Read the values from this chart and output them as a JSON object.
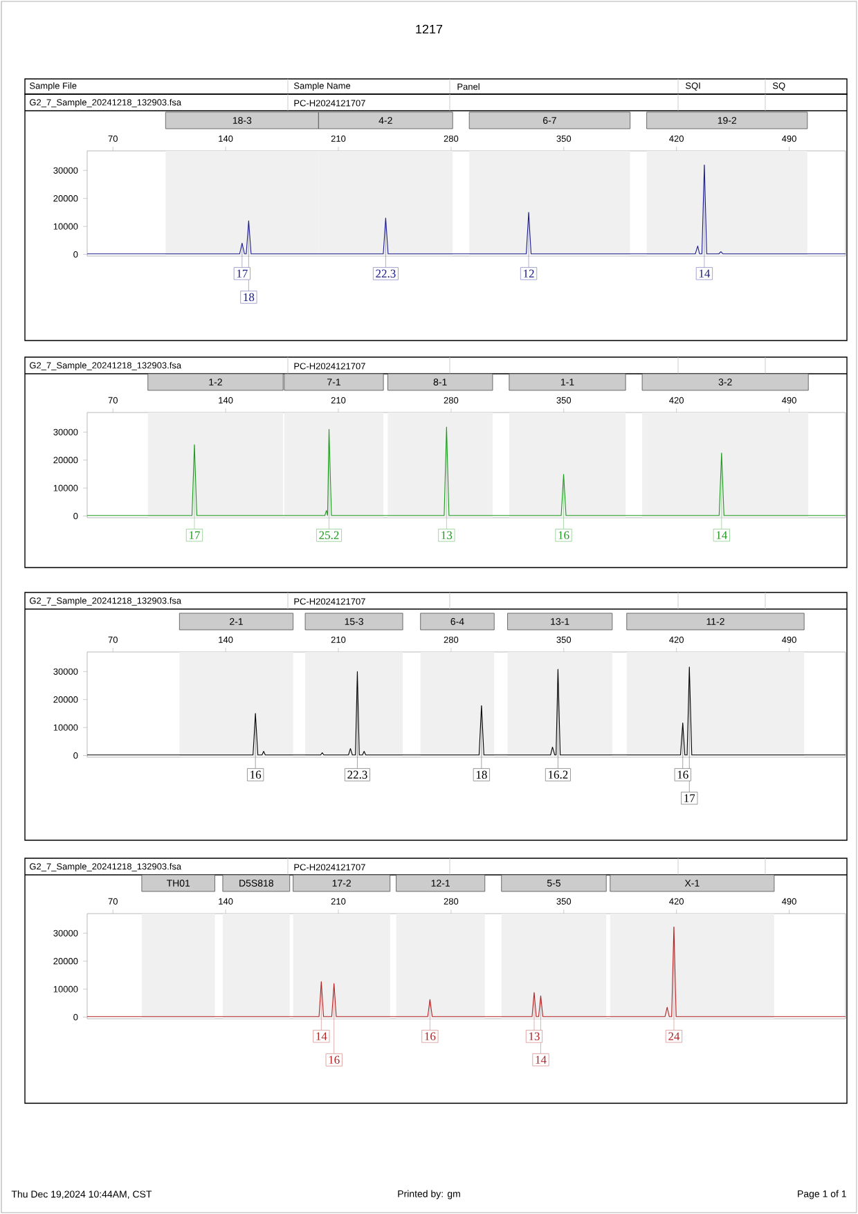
{
  "chart_data": [
    {
      "type": "line",
      "title": "1217",
      "color": "#1c1c8c",
      "xlim": [
        54,
        525
      ],
      "ylim": [
        -600,
        37000
      ],
      "xticks": [
        70,
        140,
        210,
        280,
        350,
        420,
        490
      ],
      "yticks": [
        0,
        10000,
        20000,
        30000
      ],
      "x": [
        54,
        148.7,
        150.2,
        151.7,
        152.8,
        154.3,
        155.8,
        237.9,
        239.4,
        240.9,
        326.7,
        328.2,
        329.7,
        431.7,
        433.2,
        434.3,
        435.8,
        437.3,
        438.8,
        446.3,
        447.6,
        448.9,
        525
      ],
      "values": [
        200,
        200,
        4000,
        200,
        200,
        12000,
        200,
        200,
        13000,
        200,
        200,
        15000,
        200,
        200,
        3000,
        200,
        200,
        32000,
        200,
        200,
        1000,
        200,
        200
      ],
      "bands": [
        {
          "axis": "x",
          "from": 102.7,
          "to": 197.7,
          "label": "18-3"
        },
        {
          "axis": "x",
          "from": 197.7,
          "to": 281,
          "label": "4-2"
        },
        {
          "axis": "x",
          "from": 291.3,
          "to": 391.2,
          "label": "6-7"
        },
        {
          "axis": "x",
          "from": 401.5,
          "to": 501.3,
          "label": "19-2"
        }
      ],
      "annotations": [
        "Sample File",
        "Sample Name",
        "Panel",
        "SQI",
        "SQ",
        "G2_7_Sample_20241218_132903.fsa",
        "PC-H2024121707",
        {
          "text": "17",
          "x": 150.2,
          "y": 4000
        },
        {
          "text": "18",
          "x": 154.3,
          "y": 12000
        },
        {
          "text": "22.3",
          "x": 239.4,
          "y": 13000
        },
        {
          "text": "12",
          "x": 328.2,
          "y": 15000
        },
        {
          "text": "14",
          "x": 437.3,
          "y": 32000
        }
      ]
    },
    {
      "type": "line",
      "color": "#1e9a1e",
      "xlim": [
        54,
        525
      ],
      "ylim": [
        -600,
        37000
      ],
      "xticks": [
        70,
        140,
        210,
        280,
        350,
        420,
        490
      ],
      "yticks": [
        0,
        10000,
        20000,
        30000
      ],
      "x": [
        54,
        119.1,
        120.6,
        122.1,
        201.6,
        202.6,
        203.3,
        204.2,
        205.7,
        275.7,
        277.2,
        278.7,
        348.4,
        349.9,
        351.4,
        446.5,
        448,
        449.5,
        525
      ],
      "values": [
        200,
        200,
        25500,
        200,
        200,
        2000,
        200,
        31000,
        200,
        200,
        31800,
        200,
        200,
        14900,
        200,
        200,
        22500,
        200,
        200
      ],
      "bands": [
        {
          "axis": "x",
          "from": 91.7,
          "to": 175.7,
          "label": "1-2"
        },
        {
          "axis": "x",
          "from": 176.4,
          "to": 238,
          "label": "7-1"
        },
        {
          "axis": "x",
          "from": 240.7,
          "to": 305.8,
          "label": "8-1"
        },
        {
          "axis": "x",
          "from": 316.1,
          "to": 388.4,
          "label": "1-1"
        },
        {
          "axis": "x",
          "from": 398.7,
          "to": 501.9,
          "label": "3-2"
        }
      ],
      "annotations": [
        "G2_7_Sample_20241218_132903.fsa",
        "PC-H2024121707",
        {
          "text": "17",
          "x": 120.6,
          "y": 25500
        },
        {
          "text": "25.2",
          "x": 204.2,
          "y": 31000
        },
        {
          "text": "13",
          "x": 277.2,
          "y": 31800
        },
        {
          "text": "16",
          "x": 349.9,
          "y": 14900
        },
        {
          "text": "14",
          "x": 448,
          "y": 22500
        }
      ]
    },
    {
      "type": "line",
      "color": "#000000",
      "xlim": [
        54,
        525
      ],
      "ylim": [
        -600,
        37000
      ],
      "xticks": [
        70,
        140,
        210,
        280,
        350,
        420,
        490
      ],
      "yticks": [
        0,
        10000,
        20000,
        30000
      ],
      "x": [
        54,
        157,
        158.5,
        160,
        162.6,
        163.6,
        164.6,
        199,
        200,
        201,
        216.3,
        217.5,
        218.7,
        220.6,
        221.8,
        223,
        225,
        226,
        227,
        297.4,
        298.9,
        300.4,
        341.8,
        343,
        344.4,
        345.2,
        346.4,
        347.8,
        422.5,
        423.9,
        425.2,
        426.6,
        428,
        429.5,
        525
      ],
      "values": [
        200,
        200,
        15000,
        200,
        200,
        1500,
        200,
        200,
        1000,
        200,
        200,
        2500,
        200,
        200,
        30000,
        200,
        200,
        1500,
        200,
        200,
        17800,
        200,
        200,
        3000,
        200,
        200,
        30800,
        200,
        200,
        11600,
        200,
        200,
        31600,
        200,
        200
      ],
      "bands": [
        {
          "axis": "x",
          "from": 111.3,
          "to": 181.9,
          "label": "2-1"
        },
        {
          "axis": "x",
          "from": 189.4,
          "to": 250,
          "label": "15-3"
        },
        {
          "axis": "x",
          "from": 261,
          "to": 306.8,
          "label": "6-4"
        },
        {
          "axis": "x",
          "from": 315.1,
          "to": 380.1,
          "label": "13-1"
        },
        {
          "axis": "x",
          "from": 389.1,
          "to": 499.3,
          "label": "11-2"
        }
      ],
      "annotations": [
        "G2_7_Sample_20241218_132903.fsa",
        "PC-H2024121707",
        {
          "text": "16",
          "x": 158.5,
          "y": 15000
        },
        {
          "text": "22.3",
          "x": 221.8,
          "y": 30000
        },
        {
          "text": "18",
          "x": 298.9,
          "y": 17800
        },
        {
          "text": "16.2",
          "x": 346.4,
          "y": 30800
        },
        {
          "text": "16",
          "x": 423.9,
          "y": 11600
        },
        {
          "text": "17",
          "x": 428,
          "y": 31600
        }
      ]
    },
    {
      "type": "line",
      "color": "#b22222",
      "xlim": [
        54,
        525
      ],
      "ylim": [
        -600,
        37000
      ],
      "xticks": [
        70,
        140,
        210,
        280,
        350,
        420,
        490
      ],
      "yticks": [
        0,
        10000,
        20000,
        30000
      ],
      "x": [
        54,
        198,
        199.4,
        200.8,
        205.9,
        207.3,
        208.7,
        265.5,
        266.9,
        268.3,
        330.3,
        331.6,
        332.9,
        334.4,
        335.7,
        337,
        412.9,
        414.2,
        415.5,
        417,
        418.4,
        419.8,
        525
      ],
      "values": [
        200,
        200,
        12700,
        200,
        200,
        12000,
        200,
        200,
        6300,
        200,
        200,
        8800,
        200,
        200,
        7600,
        200,
        200,
        3500,
        200,
        200,
        32200,
        200,
        200
      ],
      "bands": [
        {
          "axis": "x",
          "from": 87.9,
          "to": 133.3,
          "label": "TH01"
        },
        {
          "axis": "x",
          "from": 138.2,
          "to": 179.8,
          "label": "D5S818"
        },
        {
          "axis": "x",
          "from": 181.9,
          "to": 242.1,
          "label": "17-2"
        },
        {
          "axis": "x",
          "from": 245.9,
          "to": 301,
          "label": "12-1"
        },
        {
          "axis": "x",
          "from": 311.3,
          "to": 376.4,
          "label": "5-5"
        },
        {
          "axis": "x",
          "from": 378.8,
          "to": 480.7,
          "label": "X-1"
        }
      ],
      "annotations": [
        "G2_7_Sample_20241218_132903.fsa",
        "PC-H2024121707",
        {
          "text": "14",
          "x": 199.4,
          "y": 12700
        },
        {
          "text": "16",
          "x": 207.3,
          "y": 12000
        },
        {
          "text": "16",
          "x": 266.9,
          "y": 6300
        },
        {
          "text": "13",
          "x": 331.6,
          "y": 8800
        },
        {
          "text": "14",
          "x": 335.7,
          "y": 7600
        },
        {
          "text": "24",
          "x": 418.4,
          "y": 32200
        },
        "Thu Dec 19,2024 10:44AM, CST",
        "Printed by: gm",
        "Page 1 of 1"
      ]
    }
  ]
}
